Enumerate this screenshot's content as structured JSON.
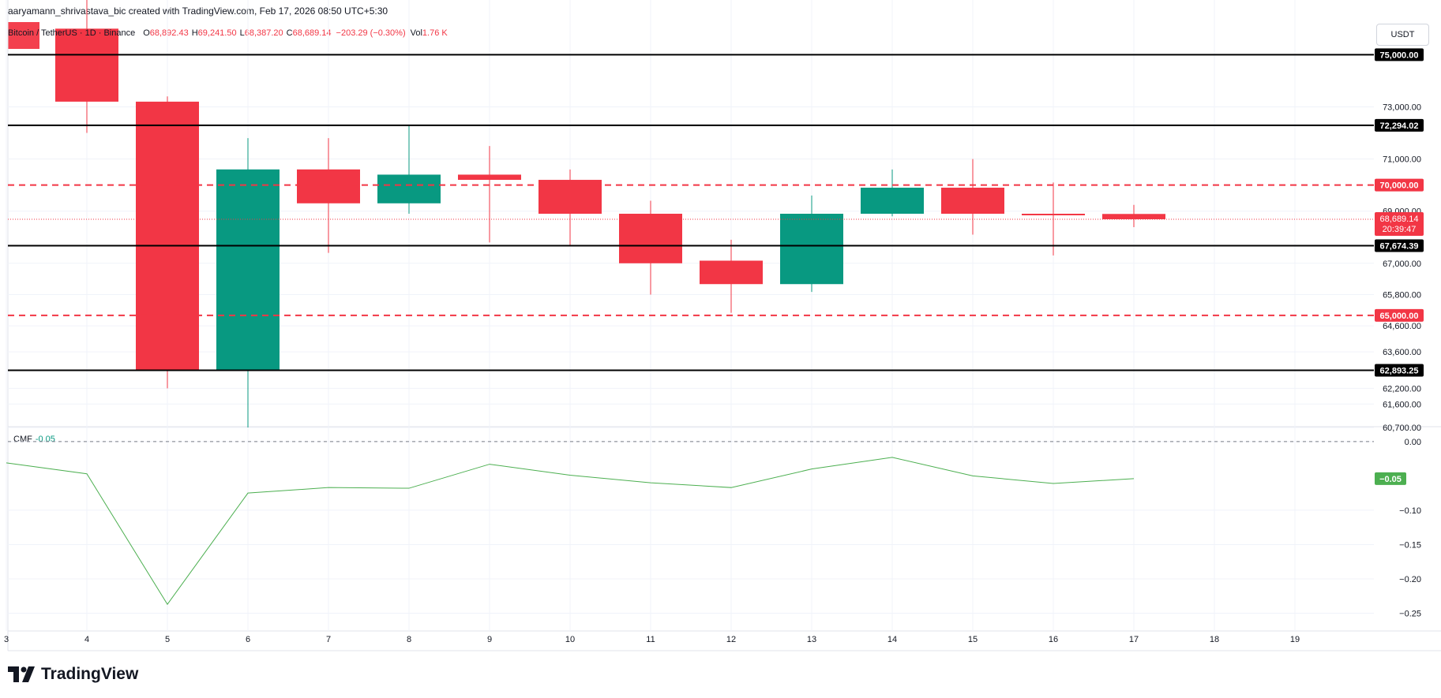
{
  "caption": "aaryamann_shrivastava_bic created with TradingView.com, Feb 17, 2026 08:50 UTC+5:30",
  "legend": {
    "symbol": "Bitcoin / TetherUS · 1D · Binance",
    "o_label": "O",
    "o_value": "68,892.43",
    "h_label": "H",
    "h_value": "69,241.50",
    "l_label": "L",
    "l_value": "68,387.20",
    "c_label": "C",
    "c_value": "68,689.14",
    "change": "−203.29 (−0.30%)",
    "vol_label": "Vol",
    "vol_value": "1.76 K"
  },
  "currency_button": "USDT",
  "logo_text": "TradingView",
  "colors": {
    "up": "#089981",
    "down": "#f23645",
    "level_line": "#000000",
    "dashed_level": "#f23645",
    "cmf_line": "#4caf50"
  },
  "chart_data": [
    {
      "type": "candlestick",
      "x_ticks": [
        "3",
        "4",
        "5",
        "6",
        "7",
        "8",
        "9",
        "10",
        "11",
        "12",
        "13",
        "14",
        "15",
        "16",
        "17",
        "18",
        "19"
      ],
      "y_ticks": [
        "73,000.00",
        "71,000.00",
        "69,000.00",
        "67,000.00",
        "65,800.00",
        "64,600.00",
        "63,600.00",
        "62,200.00",
        "61,600.00",
        "60,700.00"
      ],
      "ylim": [
        60700,
        77100
      ],
      "candles": [
        {
          "x": "4",
          "open": 76000,
          "high": 77200,
          "low": 72000,
          "close": 73200
        },
        {
          "x": "5",
          "open": 73200,
          "high": 73400,
          "low": 62200,
          "close": 62900
        },
        {
          "x": "6",
          "open": 62900,
          "high": 71800,
          "low": 60700,
          "close": 70600
        },
        {
          "x": "7",
          "open": 70600,
          "high": 71800,
          "low": 67400,
          "close": 69300
        },
        {
          "x": "8",
          "open": 69300,
          "high": 72300,
          "low": 68900,
          "close": 70400
        },
        {
          "x": "9",
          "open": 70400,
          "high": 71500,
          "low": 67800,
          "close": 70200
        },
        {
          "x": "10",
          "open": 70200,
          "high": 70600,
          "low": 67700,
          "close": 68900
        },
        {
          "x": "11",
          "open": 68900,
          "high": 69400,
          "low": 65800,
          "close": 67000
        },
        {
          "x": "12",
          "open": 67100,
          "high": 67900,
          "low": 65100,
          "close": 66200
        },
        {
          "x": "13",
          "open": 66200,
          "high": 69600,
          "low": 65900,
          "close": 68900
        },
        {
          "x": "14",
          "open": 68900,
          "high": 70600,
          "low": 68800,
          "close": 69900
        },
        {
          "x": "15",
          "open": 69900,
          "high": 71000,
          "low": 68100,
          "close": 68900
        },
        {
          "x": "16",
          "open": 68900,
          "high": 70100,
          "low": 67300,
          "close": 68892
        },
        {
          "x": "17",
          "open": 68892,
          "high": 69242,
          "low": 68387,
          "close": 68689
        }
      ],
      "levels": [
        {
          "value": 75000,
          "label": "75,000.00",
          "style": "solid"
        },
        {
          "value": 72294.02,
          "label": "72,294.02",
          "style": "solid"
        },
        {
          "value": 70000,
          "label": "70,000.00",
          "style": "dashed"
        },
        {
          "value": 67674.39,
          "label": "67,674.39",
          "style": "solid"
        },
        {
          "value": 65000,
          "label": "65,000.00",
          "style": "dashed"
        },
        {
          "value": 62893.25,
          "label": "62,893.25",
          "style": "solid"
        }
      ],
      "last_price": {
        "value": 68689.14,
        "label": "68,689.14",
        "countdown": "20:39:47"
      }
    },
    {
      "type": "line",
      "legend_name": "CMF",
      "legend_value": "-0.05",
      "last_value_label": "−0.05",
      "y_ticks": [
        "0.00",
        "−0.10",
        "−0.15",
        "−0.20",
        "−0.25"
      ],
      "ylim": [
        -0.262,
        0.009
      ],
      "x": [
        "3",
        "4",
        "5",
        "6",
        "7",
        "8",
        "9",
        "10",
        "11",
        "12",
        "13",
        "14",
        "15",
        "16",
        "17"
      ],
      "values": [
        -0.031,
        -0.047,
        -0.237,
        -0.075,
        -0.067,
        -0.068,
        -0.033,
        -0.049,
        -0.06,
        -0.067,
        -0.04,
        -0.023,
        -0.05,
        -0.061,
        -0.054
      ]
    }
  ]
}
